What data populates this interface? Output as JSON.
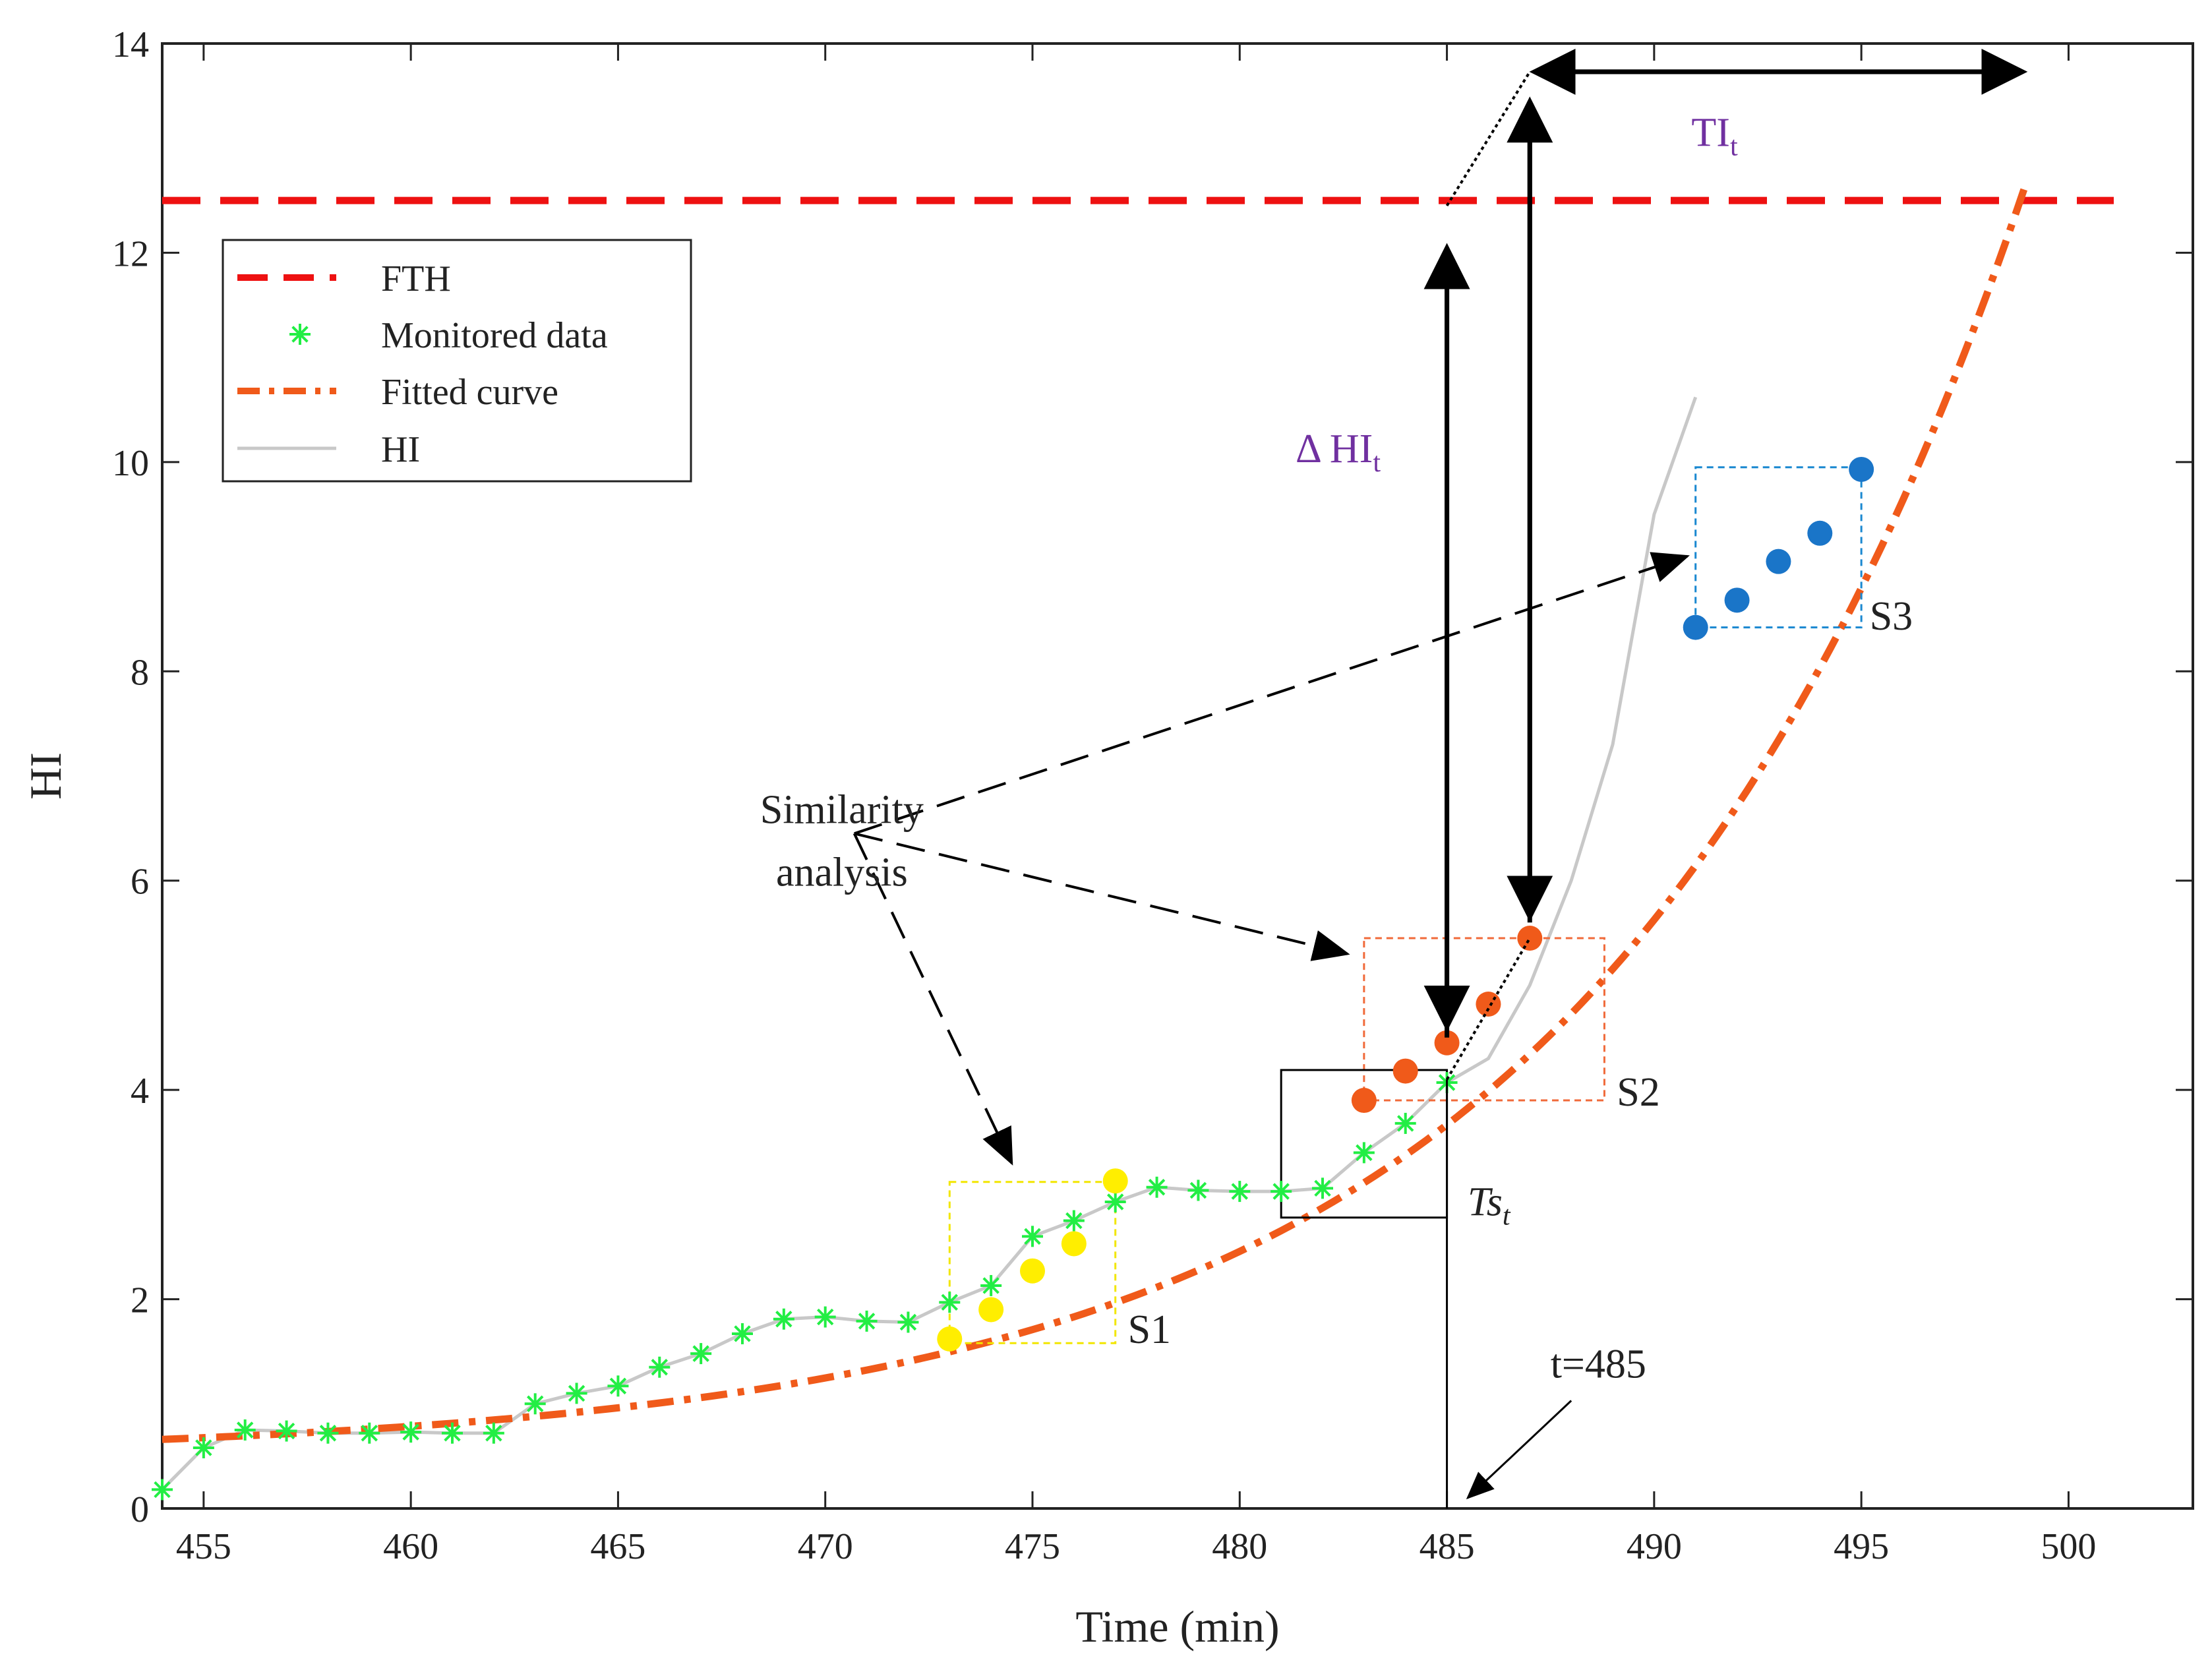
{
  "chart_data": {
    "type": "line",
    "title": "",
    "xlabel": "Time (min)",
    "ylabel": "HI",
    "xlim": [
      454,
      503
    ],
    "ylim": [
      0,
      14
    ],
    "xticks": [
      455,
      460,
      465,
      470,
      475,
      480,
      485,
      490,
      495,
      500
    ],
    "xtick_labels": [
      "455",
      "460",
      "465",
      "470",
      "475",
      "480",
      "485",
      "490",
      "495",
      "500"
    ],
    "yticks": [
      0,
      2,
      4,
      6,
      8,
      10,
      12,
      14
    ],
    "ytick_labels": [
      "0",
      "2",
      "4",
      "6",
      "8",
      "10",
      "12",
      "14"
    ],
    "grid": false,
    "legend": {
      "position": "upper-left",
      "entries": [
        {
          "label": "FTH",
          "style": "dashed",
          "color": "#ee1111"
        },
        {
          "label": "Monitored data",
          "style": "star-marker",
          "color": "#22ee44"
        },
        {
          "label": "Fitted curve",
          "style": "dash-dot",
          "color": "#f05a1a"
        },
        {
          "label": "HI",
          "style": "solid",
          "color": "#c8c8c8"
        }
      ]
    },
    "series": [
      {
        "name": "FTH",
        "type": "hline",
        "y": 12.5,
        "color": "#ee1111"
      },
      {
        "name": "Monitored data",
        "color": "#22ee44",
        "x": [
          454,
          455,
          456,
          457,
          458,
          459,
          460,
          461,
          462,
          463,
          464,
          465,
          466,
          467,
          468,
          469,
          470,
          471,
          472,
          473,
          474,
          475,
          476,
          477,
          478,
          479,
          480,
          481,
          482,
          483,
          484,
          485
        ],
        "y": [
          0.18,
          0.58,
          0.75,
          0.74,
          0.72,
          0.72,
          0.73,
          0.72,
          0.72,
          1.0,
          1.1,
          1.17,
          1.35,
          1.48,
          1.67,
          1.81,
          1.83,
          1.79,
          1.78,
          1.97,
          2.13,
          2.6,
          2.75,
          2.93,
          3.07,
          3.04,
          3.03,
          3.03,
          3.06,
          3.4,
          3.68,
          4.07
        ]
      },
      {
        "name": "HI",
        "color": "#c8c8c8",
        "x": [
          454,
          455,
          456,
          457,
          458,
          459,
          460,
          461,
          462,
          463,
          464,
          465,
          466,
          467,
          468,
          469,
          470,
          471,
          472,
          473,
          474,
          475,
          476,
          477,
          478,
          479,
          480,
          481,
          482,
          483,
          484,
          485,
          486,
          487,
          488,
          489,
          490,
          491
        ],
        "y": [
          0.18,
          0.58,
          0.75,
          0.74,
          0.72,
          0.72,
          0.73,
          0.72,
          0.72,
          1.0,
          1.1,
          1.17,
          1.35,
          1.48,
          1.67,
          1.81,
          1.83,
          1.79,
          1.78,
          1.97,
          2.13,
          2.6,
          2.75,
          2.93,
          3.07,
          3.04,
          3.03,
          3.03,
          3.06,
          3.4,
          3.68,
          4.07,
          4.3,
          5.0,
          6.0,
          7.3,
          9.5,
          10.62
        ]
      },
      {
        "name": "Fitted curve",
        "color": "#f05a1a",
        "model": "y = 0.5 + 0.16*exp(0.0963*(x-454))",
        "x_range": [
          454,
          499
        ]
      },
      {
        "name": "S1 points",
        "color": "#ffee00",
        "x": [
          473,
          474,
          475,
          476,
          477
        ],
        "y": [
          1.62,
          1.9,
          2.27,
          2.53,
          3.13
        ]
      },
      {
        "name": "S2 points",
        "color": "#f05a1a",
        "x": [
          483,
          484,
          485,
          486,
          487
        ],
        "y": [
          3.9,
          4.18,
          4.45,
          4.82,
          5.45
        ]
      },
      {
        "name": "S3 points",
        "color": "#1a75c8",
        "x": [
          491,
          492,
          493,
          494,
          495
        ],
        "y": [
          8.42,
          8.68,
          9.05,
          9.32,
          9.93
        ]
      }
    ],
    "windows": [
      {
        "label": "S1",
        "x": [
          473,
          477
        ],
        "y": [
          1.58,
          3.12
        ],
        "color": "#f2e600"
      },
      {
        "label": "S2",
        "x": [
          483,
          488.8
        ],
        "y": [
          3.9,
          5.45
        ],
        "color": "#f06a3a"
      },
      {
        "label": "S3",
        "x": [
          491,
          495
        ],
        "y": [
          8.42,
          9.95
        ],
        "color": "#1a88d0"
      },
      {
        "label": "Ts_t",
        "x": [
          481,
          485
        ],
        "y": [
          2.78,
          4.19
        ],
        "color": "#000000"
      }
    ],
    "annotations": {
      "similarity_line1": "Similarity",
      "similarity_line2": "analysis",
      "delta_hi_base": "Δ HI",
      "delta_hi_sub": "t",
      "ti_base": "TI",
      "ti_sub": "t",
      "ts_base": "Ts",
      "ts_sub": "t",
      "t_marker": "t=485",
      "s1": "S1",
      "s2": "S2",
      "s3": "S3"
    }
  }
}
